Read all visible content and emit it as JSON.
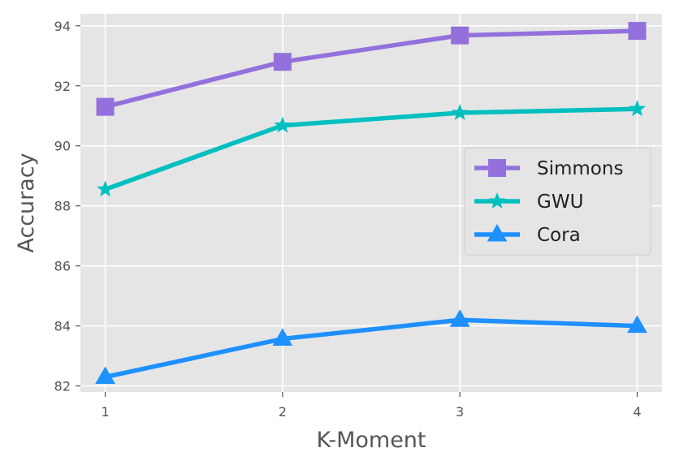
{
  "chart_data": {
    "type": "line",
    "title": "",
    "xlabel": "K-Moment",
    "ylabel": "Accuracy",
    "x": [
      1,
      2,
      3,
      4
    ],
    "x_ticks": [
      "1",
      "2",
      "3",
      "4"
    ],
    "y_ticks": [
      "82",
      "84",
      "86",
      "88",
      "90",
      "92",
      "94"
    ],
    "xlim": [
      0.86,
      4.14
    ],
    "ylim": [
      81.8,
      94.4
    ],
    "grid": true,
    "legend_position": "center-right",
    "series": [
      {
        "name": "Simmons",
        "values": [
          91.3,
          92.8,
          93.68,
          93.83
        ],
        "color": "#9370DB",
        "marker": "square"
      },
      {
        "name": "GWU",
        "values": [
          88.55,
          90.68,
          91.1,
          91.23
        ],
        "color": "#00BFBF",
        "marker": "star"
      },
      {
        "name": "Cora",
        "values": [
          82.3,
          83.57,
          84.2,
          84.0
        ],
        "color": "#1E90FF",
        "marker": "triangle"
      }
    ]
  }
}
